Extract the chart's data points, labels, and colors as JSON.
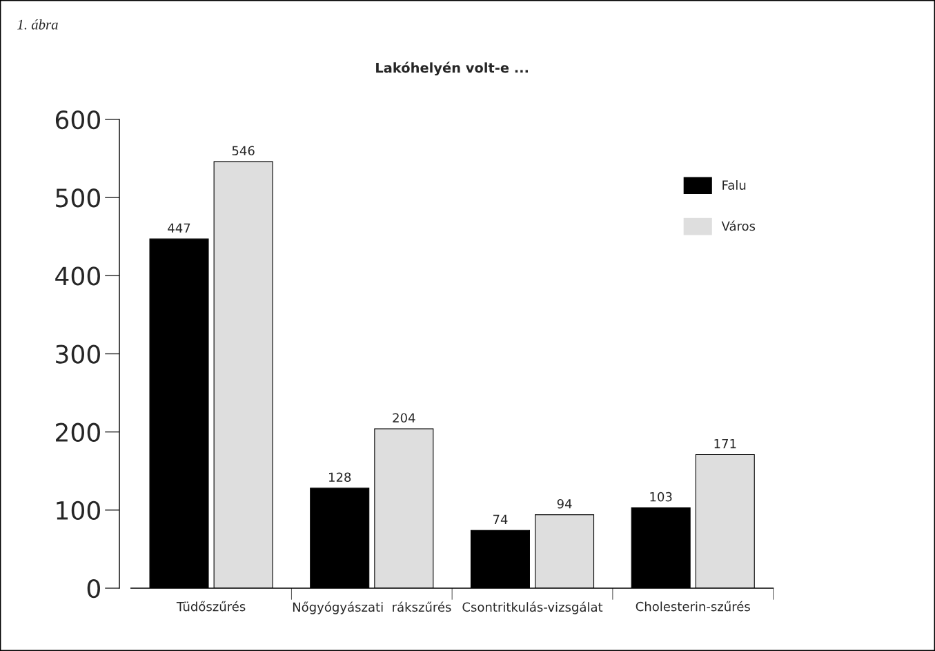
{
  "chart_data": {
    "type": "bar",
    "title": "Lakóhelyén volt-e ...",
    "annotations": [
      "1. ábra"
    ],
    "categories": [
      "Tüdőszűrés",
      "Nőgyógyászati  rákszűrés",
      "Csontritkulás-vizsgálat",
      "Cholesterin-szűrés"
    ],
    "series": [
      {
        "name": "Falu",
        "color": "#000000",
        "values": [
          447,
          128,
          74,
          103
        ]
      },
      {
        "name": "Város",
        "color": "#dedede",
        "values": [
          546,
          204,
          94,
          171
        ]
      }
    ],
    "ylim": [
      0,
      600
    ],
    "yticks": [
      0,
      100,
      200,
      300,
      400,
      500,
      600
    ],
    "data_labels": true,
    "legend": "top right"
  }
}
